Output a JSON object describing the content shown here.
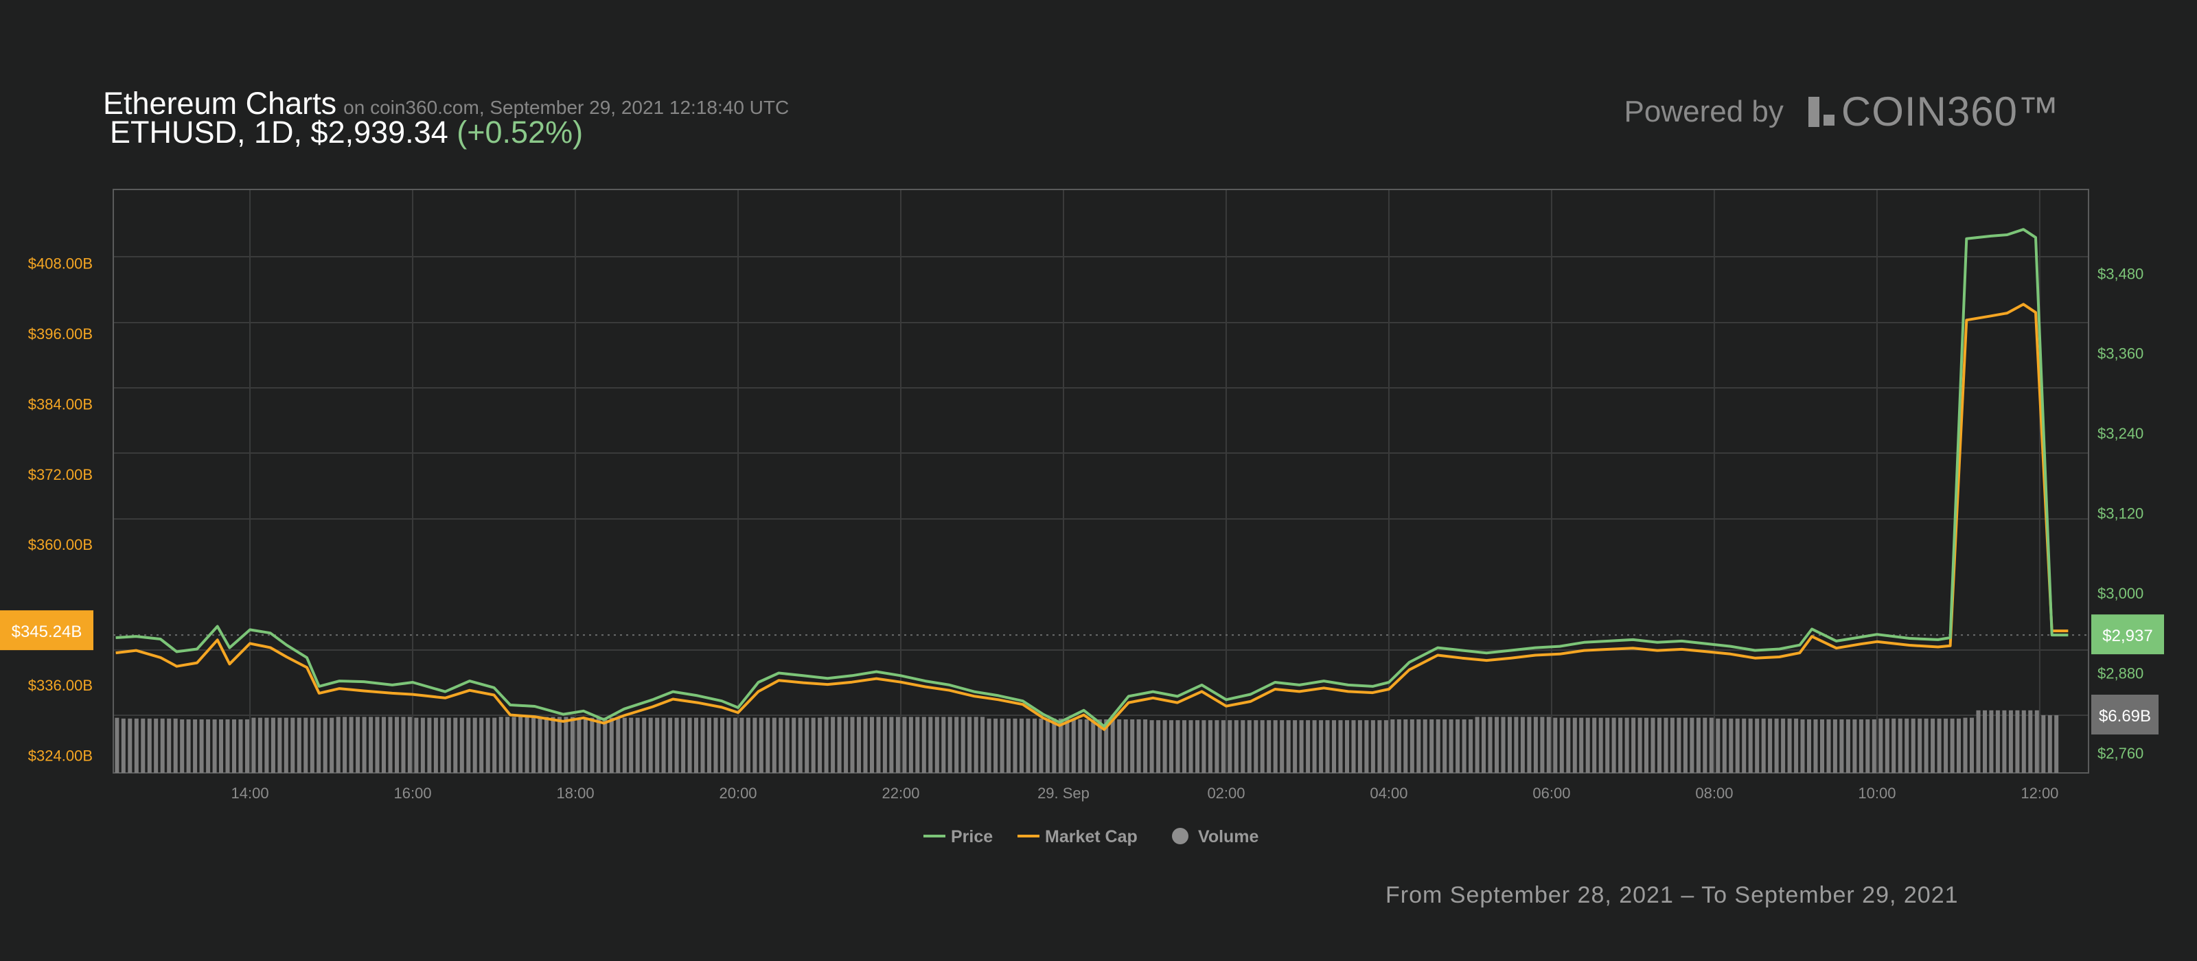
{
  "header": {
    "title": "Ethereum Charts",
    "source": "on coin360.com, September 29, 2021 12:18:40 UTC",
    "pair_info": "ETHUSD, 1D, $2,939.34",
    "change": "(+0.52%)"
  },
  "branding": {
    "powered_by": "Powered by",
    "brand": "COIN360™"
  },
  "footer": {
    "date_range": "From September 28, 2021 – To September 29, 2021"
  },
  "colors": {
    "background": "#1f2020",
    "price": "#7cc578",
    "market_cap": "#f5a623",
    "volume": "#7c7c7c",
    "grid": "#3a3b3b"
  },
  "chart_data": {
    "type": "line",
    "x_tick_labels": [
      "14:00",
      "16:00",
      "18:00",
      "20:00",
      "22:00",
      "29. Sep",
      "02:00",
      "04:00",
      "06:00",
      "08:00",
      "10:00",
      "12:00"
    ],
    "x_range_hours": [
      12.32,
      36.6
    ],
    "left_axis": {
      "labels": [
        "$408.00B",
        "$396.00B",
        "$384.00B",
        "$372.00B",
        "$360.00B",
        "$336.00B",
        "$324.00B"
      ],
      "values": [
        408,
        396,
        384,
        372,
        360,
        336,
        324
      ],
      "unit": "B",
      "range": [
        321,
        420.6
      ]
    },
    "right_axis": {
      "labels": [
        "$3,480",
        "$3,360",
        "$3,240",
        "$3,120",
        "$3,000",
        "$2,880",
        "$2,760"
      ],
      "values": [
        3480,
        3360,
        3240,
        3120,
        3000,
        2880,
        2760
      ],
      "range": [
        2730,
        3606
      ]
    },
    "current_labels": {
      "market_cap": "$345.24B",
      "price": "$2,937",
      "volume": "$6.69B"
    },
    "legend": [
      {
        "key": "price",
        "label": "Price"
      },
      {
        "key": "market_cap",
        "label": "Market Cap"
      },
      {
        "key": "volume",
        "label": "Volume"
      }
    ],
    "legend_position": "bottom-center",
    "grid": true,
    "series": [
      {
        "name": "Price",
        "axis": "right",
        "points": [
          [
            12.35,
            2933
          ],
          [
            12.6,
            2935
          ],
          [
            12.9,
            2931
          ],
          [
            13.1,
            2912
          ],
          [
            13.35,
            2916
          ],
          [
            13.6,
            2950
          ],
          [
            13.75,
            2918
          ],
          [
            14.0,
            2945
          ],
          [
            14.25,
            2940
          ],
          [
            14.45,
            2922
          ],
          [
            14.7,
            2903
          ],
          [
            14.85,
            2860
          ],
          [
            15.1,
            2868
          ],
          [
            15.4,
            2867
          ],
          [
            15.75,
            2862
          ],
          [
            16.0,
            2866
          ],
          [
            16.4,
            2852
          ],
          [
            16.7,
            2868
          ],
          [
            17.0,
            2858
          ],
          [
            17.2,
            2832
          ],
          [
            17.5,
            2830
          ],
          [
            17.85,
            2818
          ],
          [
            18.1,
            2823
          ],
          [
            18.35,
            2810
          ],
          [
            18.6,
            2826
          ],
          [
            18.95,
            2840
          ],
          [
            19.2,
            2852
          ],
          [
            19.5,
            2846
          ],
          [
            19.8,
            2838
          ],
          [
            20.0,
            2828
          ],
          [
            20.25,
            2866
          ],
          [
            20.5,
            2880
          ],
          [
            20.8,
            2876
          ],
          [
            21.1,
            2872
          ],
          [
            21.4,
            2876
          ],
          [
            21.7,
            2882
          ],
          [
            22.0,
            2876
          ],
          [
            22.3,
            2868
          ],
          [
            22.6,
            2862
          ],
          [
            22.9,
            2852
          ],
          [
            23.2,
            2846
          ],
          [
            23.5,
            2838
          ],
          [
            23.75,
            2818
          ],
          [
            23.95,
            2806
          ],
          [
            24.25,
            2824
          ],
          [
            24.5,
            2800
          ],
          [
            24.8,
            2845
          ],
          [
            25.1,
            2852
          ],
          [
            25.4,
            2845
          ],
          [
            25.7,
            2862
          ],
          [
            26.0,
            2840
          ],
          [
            26.3,
            2848
          ],
          [
            26.6,
            2866
          ],
          [
            26.9,
            2862
          ],
          [
            27.2,
            2868
          ],
          [
            27.5,
            2862
          ],
          [
            27.8,
            2860
          ],
          [
            28.0,
            2866
          ],
          [
            28.25,
            2896
          ],
          [
            28.6,
            2918
          ],
          [
            28.9,
            2914
          ],
          [
            29.2,
            2910
          ],
          [
            29.5,
            2914
          ],
          [
            29.8,
            2918
          ],
          [
            30.1,
            2920
          ],
          [
            30.4,
            2926
          ],
          [
            30.7,
            2928
          ],
          [
            31.0,
            2930
          ],
          [
            31.3,
            2926
          ],
          [
            31.6,
            2928
          ],
          [
            31.9,
            2924
          ],
          [
            32.2,
            2920
          ],
          [
            32.5,
            2914
          ],
          [
            32.8,
            2916
          ],
          [
            33.05,
            2922
          ],
          [
            33.2,
            2946
          ],
          [
            33.5,
            2928
          ],
          [
            33.8,
            2934
          ],
          [
            34.0,
            2938
          ],
          [
            34.4,
            2932
          ],
          [
            34.75,
            2930
          ],
          [
            34.9,
            2933
          ],
          [
            35.1,
            3532
          ],
          [
            35.4,
            3536
          ],
          [
            35.6,
            3538
          ],
          [
            35.8,
            3546
          ],
          [
            35.95,
            3534
          ],
          [
            36.15,
            2937
          ],
          [
            36.35,
            2937
          ]
        ]
      },
      {
        "name": "Market Cap",
        "axis": "left",
        "points": [
          [
            12.35,
            341.5
          ],
          [
            12.6,
            341.9
          ],
          [
            12.9,
            340.7
          ],
          [
            13.1,
            339.2
          ],
          [
            13.35,
            339.8
          ],
          [
            13.6,
            343.7
          ],
          [
            13.75,
            339.6
          ],
          [
            14.0,
            343.1
          ],
          [
            14.25,
            342.4
          ],
          [
            14.45,
            340.8
          ],
          [
            14.7,
            339.0
          ],
          [
            14.85,
            334.6
          ],
          [
            15.1,
            335.4
          ],
          [
            15.4,
            335.0
          ],
          [
            15.75,
            334.6
          ],
          [
            16.0,
            334.4
          ],
          [
            16.4,
            333.8
          ],
          [
            16.7,
            335.1
          ],
          [
            17.0,
            334.3
          ],
          [
            17.2,
            330.9
          ],
          [
            17.5,
            330.6
          ],
          [
            17.85,
            329.8
          ],
          [
            18.1,
            330.4
          ],
          [
            18.35,
            329.5
          ],
          [
            18.6,
            330.8
          ],
          [
            18.95,
            332.3
          ],
          [
            19.2,
            333.6
          ],
          [
            19.5,
            333.0
          ],
          [
            19.8,
            332.2
          ],
          [
            20.0,
            331.3
          ],
          [
            20.25,
            334.9
          ],
          [
            20.5,
            336.8
          ],
          [
            20.8,
            336.4
          ],
          [
            21.1,
            336.1
          ],
          [
            21.4,
            336.5
          ],
          [
            21.7,
            337.1
          ],
          [
            22.0,
            336.5
          ],
          [
            22.3,
            335.7
          ],
          [
            22.6,
            335.1
          ],
          [
            22.9,
            334.1
          ],
          [
            23.2,
            333.5
          ],
          [
            23.5,
            332.7
          ],
          [
            23.75,
            330.4
          ],
          [
            23.95,
            329.1
          ],
          [
            24.25,
            330.9
          ],
          [
            24.5,
            328.4
          ],
          [
            24.8,
            333.0
          ],
          [
            25.1,
            333.8
          ],
          [
            25.4,
            333.0
          ],
          [
            25.7,
            334.9
          ],
          [
            26.0,
            332.4
          ],
          [
            26.3,
            333.2
          ],
          [
            26.6,
            335.3
          ],
          [
            26.9,
            334.9
          ],
          [
            27.2,
            335.5
          ],
          [
            27.5,
            334.9
          ],
          [
            27.8,
            334.7
          ],
          [
            28.0,
            335.3
          ],
          [
            28.25,
            338.6
          ],
          [
            28.6,
            341.1
          ],
          [
            28.9,
            340.6
          ],
          [
            29.2,
            340.2
          ],
          [
            29.5,
            340.6
          ],
          [
            29.8,
            341.1
          ],
          [
            30.1,
            341.3
          ],
          [
            30.4,
            341.9
          ],
          [
            30.7,
            342.1
          ],
          [
            31.0,
            342.3
          ],
          [
            31.3,
            341.9
          ],
          [
            31.6,
            342.1
          ],
          [
            31.9,
            341.7
          ],
          [
            32.2,
            341.3
          ],
          [
            32.5,
            340.6
          ],
          [
            32.8,
            340.8
          ],
          [
            33.05,
            341.5
          ],
          [
            33.2,
            344.3
          ],
          [
            33.5,
            342.3
          ],
          [
            33.8,
            343.0
          ],
          [
            34.0,
            343.4
          ],
          [
            34.4,
            342.8
          ],
          [
            34.75,
            342.5
          ],
          [
            34.9,
            342.7
          ],
          [
            35.1,
            398.3
          ],
          [
            35.4,
            399.0
          ],
          [
            35.6,
            399.5
          ],
          [
            35.8,
            401.0
          ],
          [
            35.95,
            399.6
          ],
          [
            36.15,
            345.24
          ],
          [
            36.35,
            345.24
          ]
        ]
      },
      {
        "name": "Volume",
        "axis": "volume",
        "unit": "B",
        "points": [
          [
            12.35,
            6.6
          ],
          [
            13.1,
            6.5
          ],
          [
            14.0,
            6.7
          ],
          [
            15.0,
            6.8
          ],
          [
            16.0,
            6.7
          ],
          [
            17.0,
            6.8
          ],
          [
            18.0,
            6.7
          ],
          [
            19.0,
            6.7
          ],
          [
            20.0,
            6.7
          ],
          [
            21.0,
            6.8
          ],
          [
            22.0,
            6.8
          ],
          [
            23.0,
            6.6
          ],
          [
            24.0,
            6.5
          ],
          [
            25.0,
            6.4
          ],
          [
            26.0,
            6.4
          ],
          [
            27.0,
            6.4
          ],
          [
            28.0,
            6.5
          ],
          [
            29.0,
            6.8
          ],
          [
            30.0,
            6.7
          ],
          [
            31.0,
            6.7
          ],
          [
            32.0,
            6.6
          ],
          [
            33.0,
            6.5
          ],
          [
            34.0,
            6.6
          ],
          [
            35.0,
            6.7
          ],
          [
            35.2,
            7.6
          ],
          [
            35.9,
            7.6
          ],
          [
            36.0,
            7.0
          ],
          [
            36.2,
            6.69
          ]
        ]
      }
    ]
  }
}
